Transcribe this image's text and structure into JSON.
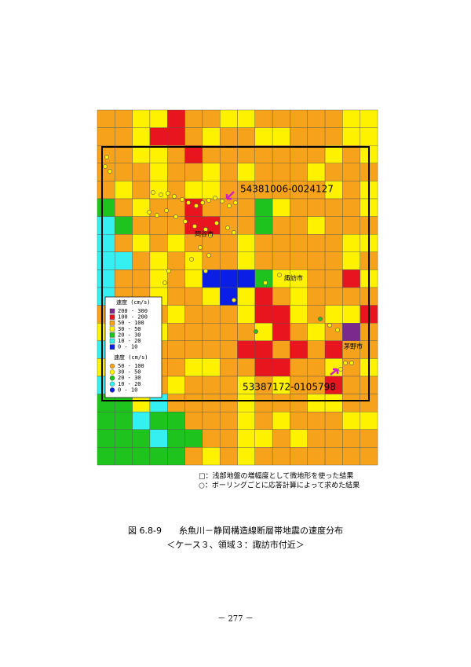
{
  "figure": {
    "labels": {
      "site1": "54381006-0024127",
      "site2": "53387172-0105798",
      "cities": [
        "岡谷市",
        "諏訪市",
        "茅野市"
      ]
    },
    "legend_grid": {
      "title": "速度 (cm/s)",
      "items": [
        "200 - 300",
        "100 - 200",
        "50 - 100",
        "30 - 50",
        "20 - 30",
        "10 - 20",
        "0 - 10"
      ]
    },
    "legend_points": {
      "title": "速度 (cm/s)",
      "items": [
        "50 - 100",
        "30 - 50",
        "20 - 30",
        "10 - 20",
        "0 - 10"
      ]
    }
  },
  "notes": [
    "□：浅部地盤の増幅度として微地形を使った結果",
    "○：ボーリングごとに応答計算によって求めた結果"
  ],
  "caption": {
    "line1": "図 6.8-9　　糸魚川－静岡構造線断層帯地震の速度分布",
    "line2": "＜ケース３、領域３：諏訪市付近＞"
  },
  "page_number": "－ 277 －"
}
